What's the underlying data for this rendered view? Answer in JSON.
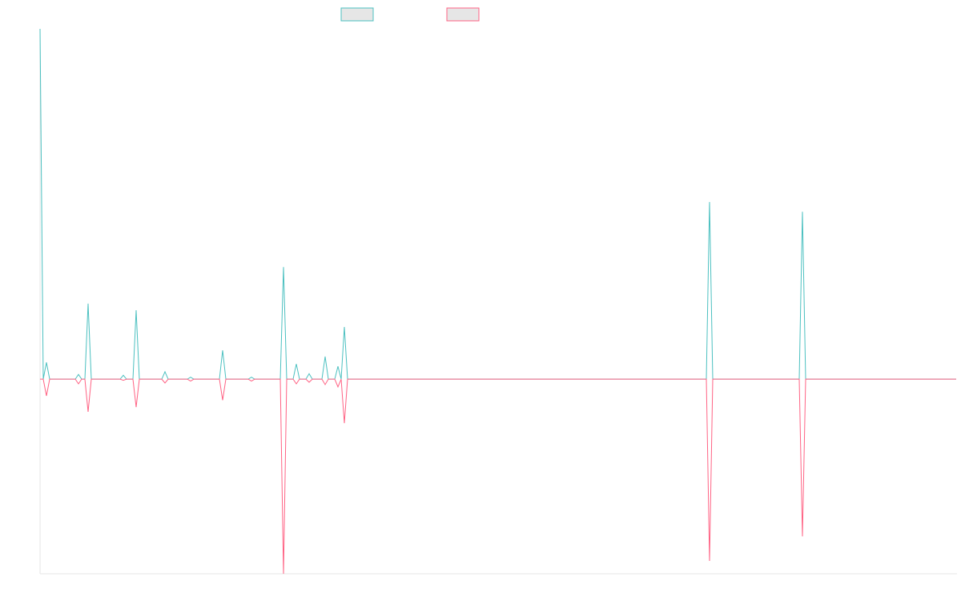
{
  "chart_data": {
    "type": "line",
    "x": [
      0,
      1,
      2,
      3,
      11,
      12,
      13,
      14,
      15,
      16,
      25,
      26,
      27,
      29,
      30,
      31,
      38,
      39,
      40,
      46,
      47,
      48,
      56,
      57,
      58,
      65,
      66,
      67,
      75,
      76,
      77,
      79,
      80,
      81,
      83,
      84,
      85,
      88,
      89,
      90,
      92,
      93,
      94,
      95,
      96,
      208,
      209,
      210,
      237,
      238,
      239,
      286
    ],
    "series": [
      {
        "color": "#4bc0c0",
        "values": [
          90,
          0,
          4.3,
          0,
          0,
          1.2,
          0,
          0,
          19.4,
          0,
          0,
          1,
          0,
          0,
          17.7,
          0,
          0,
          1.9,
          0,
          0,
          0.5,
          0,
          0,
          7.4,
          0,
          0,
          0.5,
          0,
          0,
          28.8,
          0,
          0,
          3.9,
          0,
          0,
          1.4,
          0,
          0,
          5.8,
          0,
          0,
          3.3,
          0,
          13.4,
          0,
          0,
          45.5,
          0,
          0,
          43,
          0,
          0
        ]
      },
      {
        "color": "#ff6384",
        "values": [
          0,
          0,
          -4.3,
          0,
          0,
          -1.2,
          0,
          0,
          -8.4,
          0,
          0,
          -0.3,
          0,
          0,
          -7.2,
          0,
          0,
          -1,
          0,
          0,
          -0.5,
          0,
          0,
          -5.4,
          0,
          0,
          -0.5,
          0,
          0,
          -50,
          0,
          0,
          -1.2,
          0,
          0,
          -0.8,
          0,
          0,
          -1.4,
          0,
          0,
          -2,
          0,
          -11.3,
          0,
          0,
          -46.7,
          0,
          0,
          -40.4,
          0,
          0
        ]
      }
    ],
    "xlim": [
      0,
      286
    ],
    "ylim": [
      -50,
      90
    ]
  }
}
